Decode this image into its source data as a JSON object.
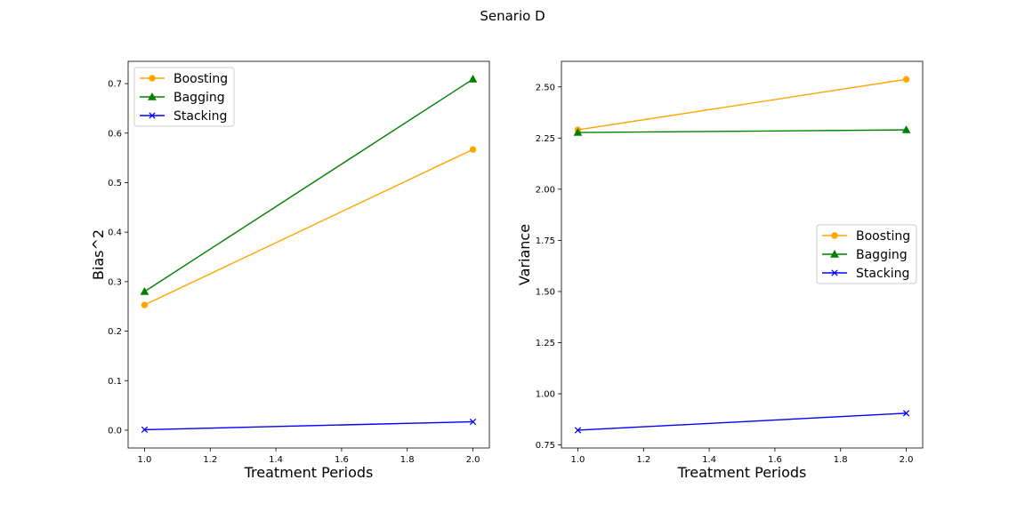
{
  "figure": {
    "suptitle": "Senario D"
  },
  "chart_data": [
    {
      "type": "line",
      "title": "",
      "xlabel": "Treatment Periods",
      "ylabel": "Bias^2",
      "xlim": [
        0.95,
        2.05
      ],
      "ylim": [
        -0.036,
        0.745
      ],
      "xticks": [
        1.0,
        1.2,
        1.4,
        1.6,
        1.8,
        2.0
      ],
      "xtick_labels": [
        "1.0",
        "1.2",
        "1.4",
        "1.6",
        "1.8",
        "2.0"
      ],
      "yticks": [
        0.0,
        0.1,
        0.2,
        0.3,
        0.4,
        0.5,
        0.6,
        0.7
      ],
      "ytick_labels": [
        "0.0",
        "0.1",
        "0.2",
        "0.3",
        "0.4",
        "0.5",
        "0.6",
        "0.7"
      ],
      "grid": false,
      "legend_position": "upper-left",
      "x": [
        1.0,
        2.0
      ],
      "series": [
        {
          "name": "Boosting",
          "values": [
            0.253,
            0.567
          ],
          "color": "#ffa500",
          "marker": "circle"
        },
        {
          "name": "Bagging",
          "values": [
            0.28,
            0.709
          ],
          "color": "#008000",
          "marker": "triangle"
        },
        {
          "name": "Stacking",
          "values": [
            0.001,
            0.017
          ],
          "color": "#0000ff",
          "marker": "x"
        }
      ]
    },
    {
      "type": "line",
      "title": "",
      "xlabel": "Treatment Periods",
      "ylabel": "Variance",
      "xlim": [
        0.95,
        2.05
      ],
      "ylim": [
        0.735,
        2.625
      ],
      "xticks": [
        1.0,
        1.2,
        1.4,
        1.6,
        1.8,
        2.0
      ],
      "xtick_labels": [
        "1.0",
        "1.2",
        "1.4",
        "1.6",
        "1.8",
        "2.0"
      ],
      "yticks": [
        0.75,
        1.0,
        1.25,
        1.5,
        1.75,
        2.0,
        2.25,
        2.5
      ],
      "ytick_labels": [
        "0.75",
        "1.00",
        "1.25",
        "1.50",
        "1.75",
        "2.00",
        "2.25",
        "2.50"
      ],
      "grid": false,
      "legend_position": "center-right",
      "x": [
        1.0,
        2.0
      ],
      "series": [
        {
          "name": "Boosting",
          "values": [
            2.29,
            2.537
          ],
          "color": "#ffa500",
          "marker": "circle"
        },
        {
          "name": "Bagging",
          "values": [
            2.277,
            2.29
          ],
          "color": "#008000",
          "marker": "triangle"
        },
        {
          "name": "Stacking",
          "values": [
            0.822,
            0.905
          ],
          "color": "#0000ff",
          "marker": "x"
        }
      ]
    }
  ]
}
